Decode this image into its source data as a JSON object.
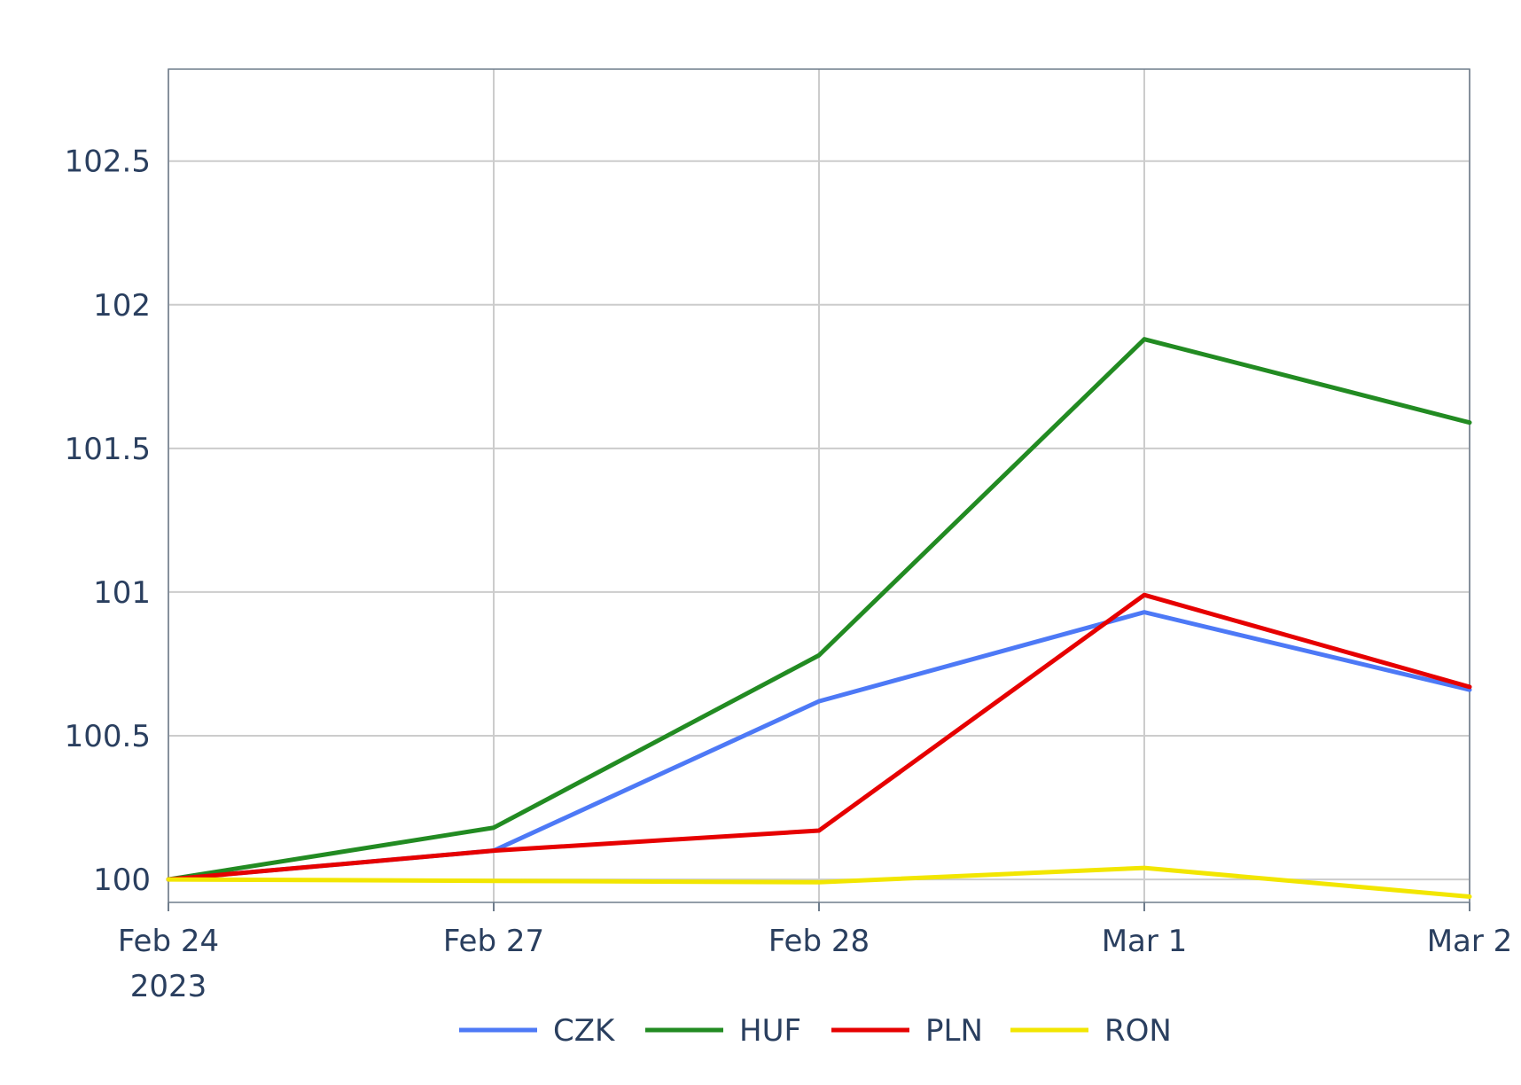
{
  "chart_data": {
    "type": "line",
    "x": [
      "Feb 24",
      "Feb 27",
      "Feb 28",
      "Mar 1",
      "Mar 2"
    ],
    "x_tick_labels": [
      "Feb 24",
      "Feb 27",
      "Feb 28",
      "Mar 1",
      "Mar 2"
    ],
    "x_year_label": "2023",
    "y_tick_labels": [
      "100",
      "100.5",
      "101",
      "101.5",
      "102",
      "102.5"
    ],
    "y_ticks": [
      100,
      100.5,
      101,
      101.5,
      102,
      102.5
    ],
    "ylim": [
      99.92,
      102.82
    ],
    "grid": true,
    "legend_position": "bottom",
    "series": [
      {
        "name": "CZK",
        "color": "#4d79f6",
        "values": [
          100.0,
          100.1,
          100.62,
          100.93,
          100.66
        ]
      },
      {
        "name": "HUF",
        "color": "#228b22",
        "values": [
          100.0,
          100.18,
          100.78,
          101.88,
          101.59
        ]
      },
      {
        "name": "PLN",
        "color": "#e60000",
        "values": [
          100.0,
          100.1,
          100.17,
          100.99,
          100.67
        ]
      },
      {
        "name": "RON",
        "color": "#f2e600",
        "values": [
          100.0,
          99.995,
          99.99,
          100.04,
          99.94
        ]
      }
    ]
  }
}
